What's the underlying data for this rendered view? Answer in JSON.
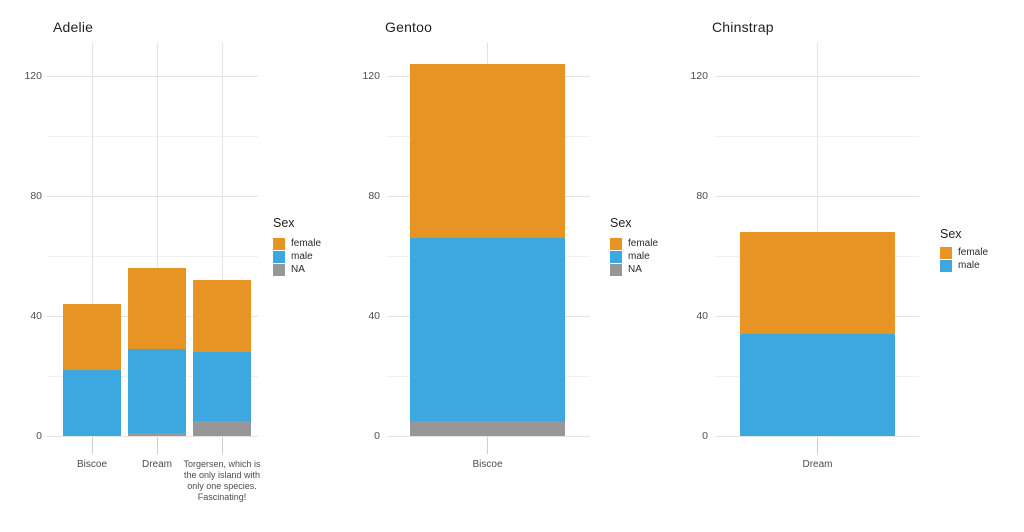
{
  "palette": {
    "female": "#E89425",
    "male": "#3DA8E0",
    "na": "#979797",
    "grid_major": "#E4E4E4",
    "grid_minor": "#F1F1F1",
    "axis_text": "#4D4D4D",
    "title_text": "#1F1F1F",
    "tick_mark": "#CFCFCF",
    "background": "#FFFFFF"
  },
  "chart_data": [
    {
      "type": "bar",
      "stacked": true,
      "title": "Adelie",
      "xlabel": "",
      "ylabel": "",
      "ylim": [
        0,
        131
      ],
      "yticks": [
        0,
        40,
        80,
        120
      ],
      "yticks_minor": [
        20,
        60,
        100
      ],
      "grid": true,
      "legend_position": "right",
      "legend_title": "Sex",
      "legend_entries": [
        "female",
        "male",
        "NA"
      ],
      "categories": [
        "Biscoe",
        "Dream",
        "Torgersen, which is\nthe only island with\nonly one species.\nFascinating!"
      ],
      "series": [
        {
          "name": "female",
          "color": "#E89425",
          "values": [
            22,
            27,
            24
          ]
        },
        {
          "name": "male",
          "color": "#3DA8E0",
          "values": [
            22,
            28,
            23
          ]
        },
        {
          "name": "NA",
          "color": "#979797",
          "values": [
            0,
            1,
            5
          ]
        }
      ],
      "stack_order_bottom_to_top": [
        "NA",
        "male",
        "female"
      ],
      "totals": [
        44,
        56,
        52
      ]
    },
    {
      "type": "bar",
      "stacked": true,
      "title": "Gentoo",
      "xlabel": "",
      "ylabel": "",
      "ylim": [
        0,
        131
      ],
      "yticks": [
        0,
        40,
        80,
        120
      ],
      "yticks_minor": [
        20,
        60,
        100
      ],
      "grid": true,
      "legend_position": "right",
      "legend_title": "Sex",
      "legend_entries": [
        "female",
        "male",
        "NA"
      ],
      "categories": [
        "Biscoe"
      ],
      "series": [
        {
          "name": "female",
          "color": "#E89425",
          "values": [
            58
          ]
        },
        {
          "name": "male",
          "color": "#3DA8E0",
          "values": [
            61
          ]
        },
        {
          "name": "NA",
          "color": "#979797",
          "values": [
            5
          ]
        }
      ],
      "stack_order_bottom_to_top": [
        "NA",
        "male",
        "female"
      ],
      "totals": [
        124
      ]
    },
    {
      "type": "bar",
      "stacked": true,
      "title": "Chinstrap",
      "xlabel": "",
      "ylabel": "",
      "ylim": [
        0,
        131
      ],
      "yticks": [
        0,
        40,
        80,
        120
      ],
      "yticks_minor": [
        20,
        60,
        100
      ],
      "grid": true,
      "legend_position": "right",
      "legend_title": "Sex",
      "legend_entries": [
        "female",
        "male"
      ],
      "categories": [
        "Dream"
      ],
      "series": [
        {
          "name": "female",
          "color": "#E89425",
          "values": [
            34
          ]
        },
        {
          "name": "male",
          "color": "#3DA8E0",
          "values": [
            34
          ]
        }
      ],
      "stack_order_bottom_to_top": [
        "male",
        "female"
      ],
      "totals": [
        68
      ]
    }
  ]
}
